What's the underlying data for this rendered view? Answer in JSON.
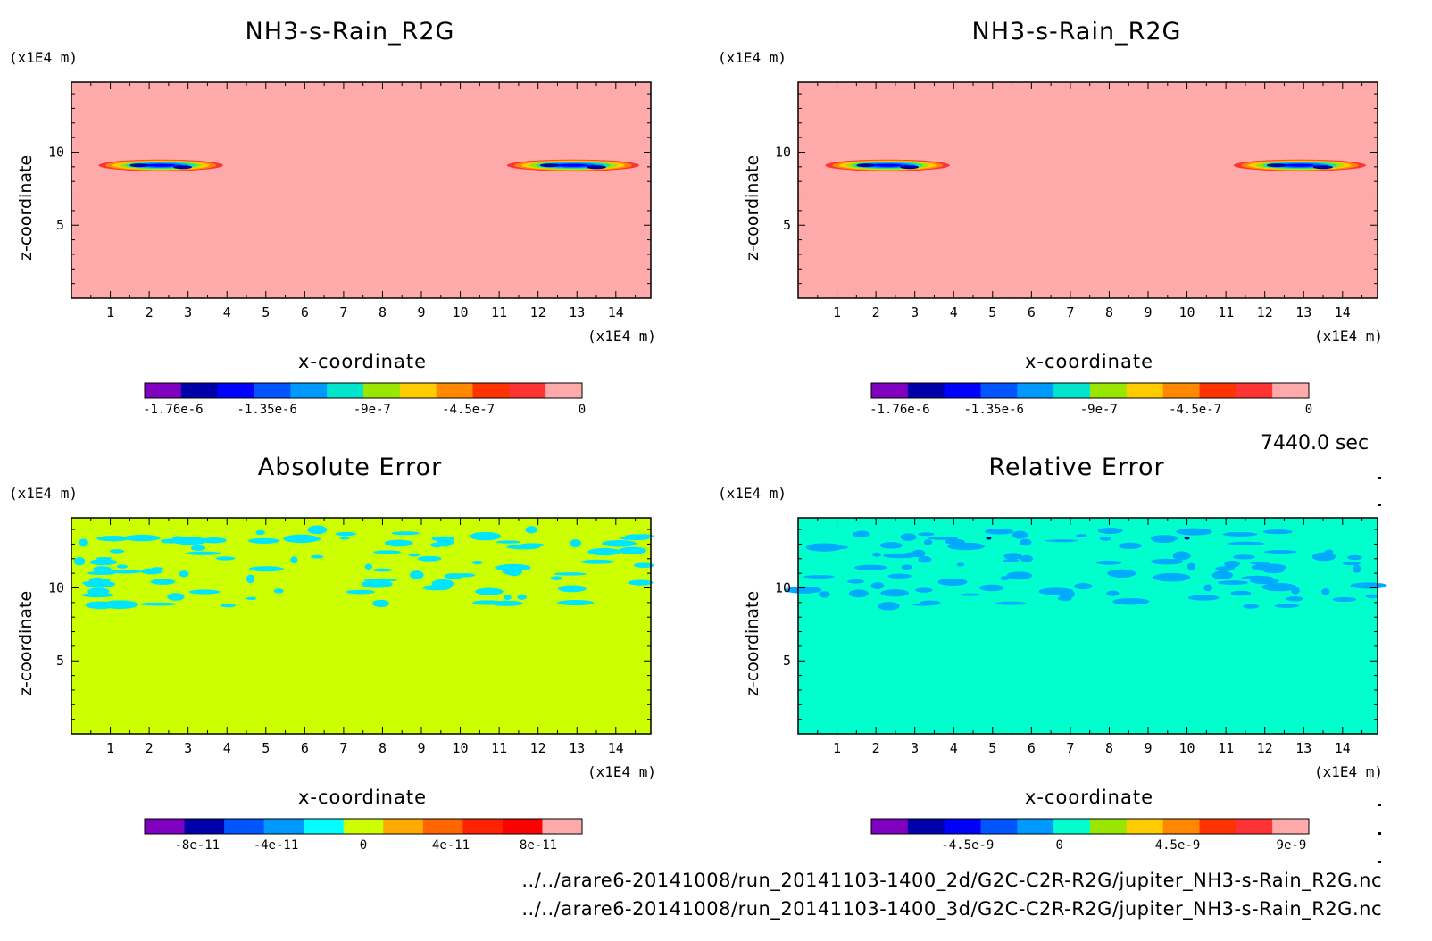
{
  "panels": [
    {
      "title": "NH3-s-Rain_R2G",
      "unit_y": "(x1E4 m)",
      "unit_x": "(x1E4 m)",
      "xlabel": "x-coordinate",
      "ylabel": "z-coordinate"
    },
    {
      "title": "NH3-s-Rain_R2G",
      "unit_y": "(x1E4 m)",
      "unit_x": "(x1E4 m)",
      "xlabel": "x-coordinate",
      "ylabel": "z-coordinate"
    },
    {
      "title": "Absolute Error",
      "unit_y": "(x1E4 m)",
      "unit_x": "(x1E4 m)",
      "xlabel": "x-coordinate",
      "ylabel": "z-coordinate"
    },
    {
      "title": "Relative Error",
      "unit_y": "(x1E4 m)",
      "unit_x": "(x1E4 m)",
      "xlabel": "x-coordinate",
      "ylabel": "z-coordinate"
    }
  ],
  "time_label": "7440.0 sec",
  "file_paths": [
    "../../arare6-20141008/run_20141103-1400_2d/G2C-C2R-R2G/jupiter_NH3-s-Rain_R2G.nc",
    "../../arare6-20141008/run_20141103-1400_3d/G2C-C2R-R2G/jupiter_NH3-s-Rain_R2G.nc"
  ],
  "colors": {
    "background_top": "#ffaaaa",
    "background_abs": "#ccff00",
    "background_rel": "#00ffcc",
    "patch_abs": "#00e5ff",
    "patch_rel": "#00aaff"
  },
  "chart_data": [
    {
      "type": "heatmap",
      "title": "NH3-s-Rain_R2G",
      "xlabel": "x-coordinate",
      "ylabel": "z-coordinate",
      "xlim": [
        0,
        14.9
      ],
      "ylim": [
        0,
        14.8
      ],
      "x_ticks": [
        1,
        2,
        3,
        4,
        5,
        6,
        7,
        8,
        9,
        10,
        11,
        12,
        13,
        14
      ],
      "y_ticks": [
        5,
        10
      ],
      "colorbar": {
        "colors": [
          "#7f00bf",
          "#0000aa",
          "#0000ff",
          "#0055ff",
          "#0099ff",
          "#00e5cc",
          "#99e600",
          "#ffcc00",
          "#ff8800",
          "#ff3300",
          "#ff3333",
          "#ffaaaa"
        ],
        "tick_labels": [
          "-1.76e-6",
          "-1.35e-6",
          "-9e-7",
          "-4.5e-7",
          "0"
        ]
      },
      "features": [
        {
          "x_range": [
            0.7,
            3.9
          ],
          "z_center": 9.1,
          "min_value": -1.76e-06
        },
        {
          "x_range": [
            11.2,
            14.6
          ],
          "z_center": 9.1,
          "min_value": -1.76e-06
        }
      ]
    },
    {
      "type": "heatmap",
      "title": "NH3-s-Rain_R2G",
      "xlabel": "x-coordinate",
      "ylabel": "z-coordinate",
      "xlim": [
        0,
        14.9
      ],
      "ylim": [
        0,
        14.8
      ],
      "x_ticks": [
        1,
        2,
        3,
        4,
        5,
        6,
        7,
        8,
        9,
        10,
        11,
        12,
        13,
        14
      ],
      "y_ticks": [
        5,
        10
      ],
      "colorbar": {
        "colors": [
          "#7f00bf",
          "#0000aa",
          "#0000ff",
          "#0055ff",
          "#0099ff",
          "#00e5cc",
          "#99e600",
          "#ffcc00",
          "#ff8800",
          "#ff3300",
          "#ff3333",
          "#ffaaaa"
        ],
        "tick_labels": [
          "-1.76e-6",
          "-1.35e-6",
          "-9e-7",
          "-4.5e-7",
          "0"
        ]
      },
      "features": [
        {
          "x_range": [
            0.7,
            3.9
          ],
          "z_center": 9.1,
          "min_value": -1.76e-06
        },
        {
          "x_range": [
            11.2,
            14.6
          ],
          "z_center": 9.1,
          "min_value": -1.76e-06
        }
      ]
    },
    {
      "type": "heatmap",
      "title": "Absolute Error",
      "xlabel": "x-coordinate",
      "ylabel": "z-coordinate",
      "xlim": [
        0,
        14.9
      ],
      "ylim": [
        0,
        14.8
      ],
      "x_ticks": [
        1,
        2,
        3,
        4,
        5,
        6,
        7,
        8,
        9,
        10,
        11,
        12,
        13,
        14
      ],
      "y_ticks": [
        5,
        10
      ],
      "colorbar": {
        "colors": [
          "#7f00bf",
          "#0000aa",
          "#0055ff",
          "#0099ff",
          "#00ffff",
          "#ccff00",
          "#ffaa00",
          "#ff6600",
          "#ff2200",
          "#ff0000",
          "#ffaaaa"
        ],
        "tick_labels": [
          "-8e-11",
          "-4e-11",
          "0",
          "4e-11",
          "8e-11"
        ]
      },
      "features": [
        {
          "z_range": [
            8.7,
            14.0
          ],
          "value": "slightly negative patches"
        }
      ]
    },
    {
      "type": "heatmap",
      "title": "Relative Error",
      "xlabel": "x-coordinate",
      "ylabel": "z-coordinate",
      "xlim": [
        0,
        14.9
      ],
      "ylim": [
        0,
        14.8
      ],
      "x_ticks": [
        1,
        2,
        3,
        4,
        5,
        6,
        7,
        8,
        9,
        10,
        11,
        12,
        13,
        14
      ],
      "y_ticks": [
        5,
        10
      ],
      "colorbar": {
        "colors": [
          "#7f00bf",
          "#0000aa",
          "#0000ff",
          "#0055ff",
          "#0099ff",
          "#00ffcc",
          "#99e600",
          "#ffcc00",
          "#ff8800",
          "#ff3300",
          "#ff3333",
          "#ffaaaa"
        ],
        "tick_labels": [
          "-4.5e-9",
          "0",
          "4.5e-9",
          "9e-9"
        ]
      },
      "features": [
        {
          "z_range": [
            8.7,
            14.0
          ],
          "value": "slightly negative patches"
        }
      ]
    }
  ]
}
